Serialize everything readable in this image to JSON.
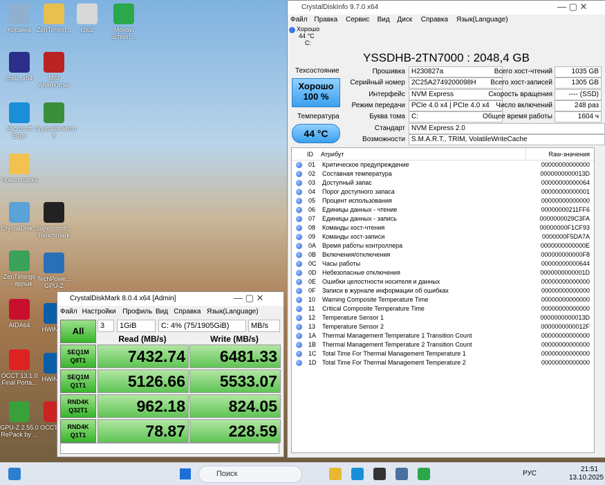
{
  "desktop": {
    "icons": [
      "Корзина",
      "cpuz_x64",
      "Microsoft Edge",
      "Новая папка",
      "CrystalDisk...",
      "ZenTimings — ярлык",
      "AIDA64",
      "OCCT 13.1.0 Final Porta...",
      "GPU-Z 2.55.0 RePack by ...",
      "ZenTiming...",
      "MSI Afterburner",
      "CrystalDiskInfo 8",
      "Superpositi... Benchmark",
      "TechPowe... GPU-Z",
      "HWiNF...",
      "HWiNF...",
      "OCCT c...",
      "cpuz",
      "Movavi Screen ..."
    ]
  },
  "crystaldiskinfo": {
    "title": "CrystalDiskInfo 9.7.0 x64",
    "menu": [
      "Файл",
      "Правка",
      "Сервис",
      "Вид",
      "Диск",
      "Справка",
      "Язык(Language)"
    ],
    "drive_tab": {
      "status": "Хорошо",
      "temperature": "44 °C",
      "letter": "C:"
    },
    "model": "YSSDHB-2TN7000 : 2048,4 GB",
    "health_label": "Техсостояние",
    "health_status": "Хорошо",
    "health_percent": "100 %",
    "temperature_label": "Температура",
    "temperature": "44 °C",
    "fields": [
      [
        "Прошивка",
        "H230827a"
      ],
      [
        "Серийный номер",
        "2C25A2749200098H"
      ],
      [
        "Интерфейс",
        "NVM Express"
      ],
      [
        "Режим передачи",
        "PCIe 4.0 x4 | PCIe 4.0 x4"
      ],
      [
        "Буква тома",
        "C:"
      ],
      [
        "Стандарт",
        "NVM Express 2.0"
      ],
      [
        "Возможности",
        "S.M.A.R.T., TRIM, VolatileWriteCache"
      ]
    ],
    "right_fields": [
      [
        "Всего хост-чтений",
        "1035 GB"
      ],
      [
        "Всего хост-записей",
        "1305 GB"
      ],
      [
        "Скорость вращения",
        "---- (SSD)"
      ],
      [
        "Число включений",
        "248 раз"
      ],
      [
        "Общее время работы",
        "1604 ч"
      ]
    ],
    "table": {
      "header": [
        "ID",
        "Атрибут",
        "Raw-значения"
      ],
      "rows": [
        [
          "01",
          "Критическое предупреждение",
          "00000000000000"
        ],
        [
          "02",
          "Составная температура",
          "0000000000013D"
        ],
        [
          "03",
          "Доступный запас",
          "00000000000064"
        ],
        [
          "04",
          "Порог доступного запаса",
          "00000000000001"
        ],
        [
          "05",
          "Процент использования",
          "00000000000000"
        ],
        [
          "06",
          "Единицы данных - чтение",
          "00000000211FF6"
        ],
        [
          "07",
          "Единицы данных - запись",
          "0000000029C3FA"
        ],
        [
          "08",
          "Команды хост-чтения",
          "00000000F1CF93"
        ],
        [
          "09",
          "Команды хост-записи",
          "0000000F5DA7A"
        ],
        [
          "0A",
          "Время работы контроллера",
          "0000000000000E"
        ],
        [
          "0B",
          "Включения/отключения",
          "000000000000F8"
        ],
        [
          "0C",
          "Часы работы",
          "00000000000644"
        ],
        [
          "0D",
          "Небезопасные отключения",
          "0000000000001D"
        ],
        [
          "0E",
          "Ошибки целостности носителя и данных",
          "00000000000000"
        ],
        [
          "0F",
          "Записи в журнале информации об ошибках",
          "00000000000000"
        ],
        [
          "10",
          "Warning Composite Temperature Time",
          "00000000000000"
        ],
        [
          "11",
          "Critical Composite Temperature Time",
          "00000000000000"
        ],
        [
          "12",
          "Temperature Sensor 1",
          "0000000000013D"
        ],
        [
          "13",
          "Temperature Sensor 2",
          "0000000000012F"
        ],
        [
          "1A",
          "Thermal Management Temperature 1 Transition Count",
          "00000000000000"
        ],
        [
          "1B",
          "Thermal Management Temperature 2 Transition Count",
          "00000000000000"
        ],
        [
          "1C",
          "Total Time For Thermal Management Temperature 1",
          "00000000000000"
        ],
        [
          "1D",
          "Total Time For Thermal Management Temperature 2",
          "00000000000000"
        ]
      ]
    }
  },
  "crystaldiskmark": {
    "title": "CrystalDiskMark 8.0.4 x64 [Admin]",
    "menu": [
      "Файл",
      "Настройки",
      "Профиль",
      "Вид",
      "Справка",
      "Язык(Language)"
    ],
    "controls": [
      "3",
      "1GiB",
      "C: 4% (75/1905GiB)",
      "MB/s"
    ],
    "all_button": "All",
    "headers": [
      "Read (MB/s)",
      "Write (MB/s)"
    ],
    "rows": [
      [
        "SEQ1M",
        "Q8T1",
        "7432.74",
        "6481.33"
      ],
      [
        "SEQ1M",
        "Q1T1",
        "5126.66",
        "5533.07"
      ],
      [
        "RND4K",
        "Q32T1",
        "962.18",
        "824.05"
      ],
      [
        "RND4K",
        "Q1T1",
        "78.87",
        "228.59"
      ]
    ]
  },
  "taskbar": {
    "search": "Поиск",
    "language": "РУС",
    "time": "21:51",
    "date": "13.10.2025"
  }
}
